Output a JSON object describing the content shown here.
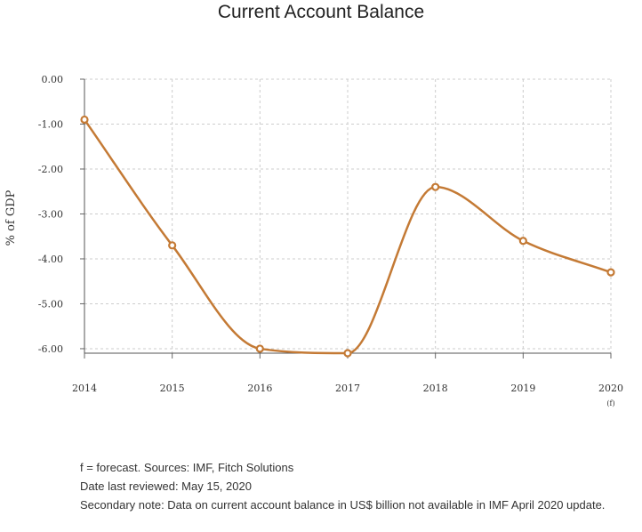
{
  "chart_data": {
    "type": "line",
    "title": "Current Account Balance",
    "ylabel": "% of GDP",
    "xlabel": "",
    "categories": [
      "2014",
      "2015",
      "2016",
      "2017",
      "2018",
      "2019",
      "2020"
    ],
    "category_notes": [
      "",
      "",
      "",
      "",
      "",
      "",
      "(f)"
    ],
    "values": [
      -0.9,
      -3.7,
      -6.0,
      -6.1,
      -2.4,
      -3.6,
      -4.3
    ],
    "ylim": [
      -6.1,
      0.0
    ],
    "yticks": [
      0,
      -1,
      -2,
      -3,
      -4,
      -5,
      -6
    ],
    "ytick_labels": [
      "0.00",
      "-1.00",
      "-2.00",
      "-3.00",
      "-4.00",
      "-5.00",
      "-6.00"
    ],
    "grid": true,
    "line_color": "#c47a35",
    "grid_color": "#cccccc"
  },
  "notes": {
    "forecast": "f = forecast. Sources: IMF, Fitch Solutions",
    "reviewed": "Date last reviewed: May 15, 2020",
    "secondary": "Secondary note: Data on current account balance in US$ billion not available in IMF April 2020 update."
  }
}
